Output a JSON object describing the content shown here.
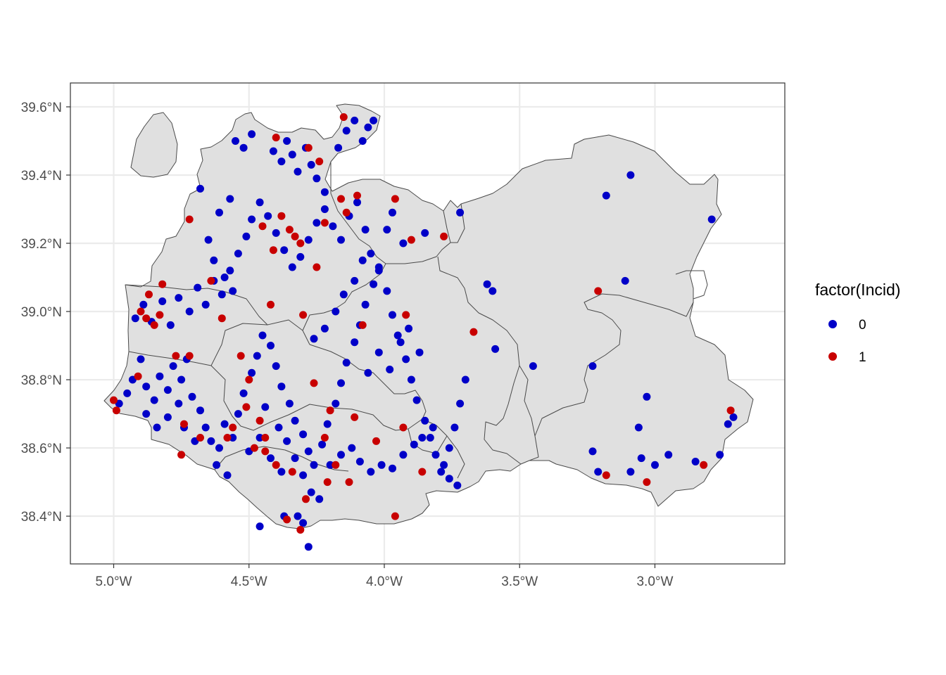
{
  "chart_data": {
    "type": "scatter",
    "subtype": "map",
    "x_ticks": [
      "5.0°W",
      "4.5°W",
      "4.0°W",
      "3.5°W",
      "3.0°W"
    ],
    "x_tick_values": [
      -5.0,
      -4.5,
      -4.0,
      -3.5,
      -3.0
    ],
    "y_ticks": [
      "38.4°N",
      "38.6°N",
      "38.8°N",
      "39.0°N",
      "39.2°N",
      "39.4°N",
      "39.6°N"
    ],
    "y_tick_values": [
      38.4,
      38.6,
      38.8,
      39.0,
      39.2,
      39.4,
      39.6
    ],
    "xlim": [
      -5.16,
      -2.52
    ],
    "ylim": [
      38.26,
      39.67
    ],
    "grid": true,
    "legend": {
      "title": "factor(Incid)",
      "position": "right",
      "entries": [
        {
          "label": "0",
          "color": "#0000c8"
        },
        {
          "label": "1",
          "color": "#c80000"
        }
      ]
    },
    "colors": {
      "0": "#0000c8",
      "1": "#c80000",
      "land": "#e0e0e0",
      "border": "#4a4a4a"
    },
    "series": [
      {
        "name": "0",
        "points": [
          [
            -4.98,
            38.73
          ],
          [
            -4.95,
            38.76
          ],
          [
            -4.93,
            38.8
          ],
          [
            -4.9,
            38.86
          ],
          [
            -4.88,
            38.78
          ],
          [
            -4.85,
            38.74
          ],
          [
            -4.83,
            38.81
          ],
          [
            -4.8,
            38.77
          ],
          [
            -4.78,
            38.84
          ],
          [
            -4.75,
            38.8
          ],
          [
            -4.73,
            38.86
          ],
          [
            -4.71,
            38.75
          ],
          [
            -4.68,
            38.71
          ],
          [
            -4.66,
            38.66
          ],
          [
            -4.64,
            38.62
          ],
          [
            -4.61,
            38.6
          ],
          [
            -4.59,
            38.67
          ],
          [
            -4.56,
            38.63
          ],
          [
            -4.54,
            38.7
          ],
          [
            -4.52,
            38.76
          ],
          [
            -4.49,
            38.82
          ],
          [
            -4.47,
            38.87
          ],
          [
            -4.45,
            38.93
          ],
          [
            -4.42,
            38.9
          ],
          [
            -4.4,
            38.84
          ],
          [
            -4.38,
            38.78
          ],
          [
            -4.35,
            38.73
          ],
          [
            -4.33,
            38.68
          ],
          [
            -4.3,
            38.64
          ],
          [
            -4.28,
            38.59
          ],
          [
            -4.26,
            38.55
          ],
          [
            -4.23,
            38.61
          ],
          [
            -4.21,
            38.67
          ],
          [
            -4.18,
            38.73
          ],
          [
            -4.16,
            38.79
          ],
          [
            -4.14,
            38.85
          ],
          [
            -4.11,
            38.91
          ],
          [
            -4.09,
            38.96
          ],
          [
            -4.07,
            39.02
          ],
          [
            -4.04,
            39.08
          ],
          [
            -4.02,
            39.13
          ],
          [
            -3.99,
            39.06
          ],
          [
            -3.97,
            38.99
          ],
          [
            -3.95,
            38.93
          ],
          [
            -3.92,
            38.86
          ],
          [
            -3.9,
            38.8
          ],
          [
            -3.88,
            38.74
          ],
          [
            -3.85,
            38.68
          ],
          [
            -3.83,
            38.63
          ],
          [
            -3.81,
            38.58
          ],
          [
            -3.78,
            38.55
          ],
          [
            -3.76,
            38.6
          ],
          [
            -3.74,
            38.66
          ],
          [
            -3.72,
            38.73
          ],
          [
            -3.7,
            38.8
          ],
          [
            -4.92,
            38.98
          ],
          [
            -4.89,
            39.02
          ],
          [
            -4.86,
            38.97
          ],
          [
            -4.82,
            39.03
          ],
          [
            -4.79,
            38.96
          ],
          [
            -4.76,
            39.04
          ],
          [
            -4.72,
            39.0
          ],
          [
            -4.69,
            39.07
          ],
          [
            -4.66,
            39.02
          ],
          [
            -4.63,
            39.09
          ],
          [
            -4.6,
            39.05
          ],
          [
            -4.57,
            39.12
          ],
          [
            -4.54,
            39.17
          ],
          [
            -4.51,
            39.22
          ],
          [
            -4.49,
            39.27
          ],
          [
            -4.46,
            39.32
          ],
          [
            -4.43,
            39.28
          ],
          [
            -4.4,
            39.23
          ],
          [
            -4.37,
            39.18
          ],
          [
            -4.34,
            39.13
          ],
          [
            -4.31,
            39.16
          ],
          [
            -4.28,
            39.21
          ],
          [
            -4.25,
            39.26
          ],
          [
            -4.22,
            39.3
          ],
          [
            -4.19,
            39.25
          ],
          [
            -4.16,
            39.21
          ],
          [
            -4.13,
            39.28
          ],
          [
            -4.1,
            39.32
          ],
          [
            -4.07,
            39.24
          ],
          [
            -4.05,
            39.17
          ],
          [
            -4.02,
            39.12
          ],
          [
            -4.55,
            39.5
          ],
          [
            -4.52,
            39.48
          ],
          [
            -4.49,
            39.52
          ],
          [
            -4.41,
            39.47
          ],
          [
            -4.38,
            39.44
          ],
          [
            -4.36,
            39.5
          ],
          [
            -4.34,
            39.46
          ],
          [
            -4.32,
            39.41
          ],
          [
            -4.29,
            39.48
          ],
          [
            -4.27,
            39.43
          ],
          [
            -4.25,
            39.39
          ],
          [
            -4.22,
            39.35
          ],
          [
            -4.14,
            39.53
          ],
          [
            -4.11,
            39.56
          ],
          [
            -4.08,
            39.5
          ],
          [
            -4.06,
            39.54
          ],
          [
            -4.04,
            39.56
          ],
          [
            -4.17,
            39.48
          ],
          [
            -4.68,
            39.36
          ],
          [
            -4.61,
            39.29
          ],
          [
            -4.57,
            39.33
          ],
          [
            -4.65,
            39.21
          ],
          [
            -4.63,
            39.15
          ],
          [
            -4.59,
            39.1
          ],
          [
            -4.56,
            39.06
          ],
          [
            -4.44,
            38.72
          ],
          [
            -4.39,
            38.66
          ],
          [
            -4.36,
            38.62
          ],
          [
            -4.33,
            38.57
          ],
          [
            -4.3,
            38.52
          ],
          [
            -4.27,
            38.47
          ],
          [
            -4.24,
            38.45
          ],
          [
            -4.37,
            38.4
          ],
          [
            -4.32,
            38.4
          ],
          [
            -4.3,
            38.38
          ],
          [
            -4.28,
            38.31
          ],
          [
            -4.46,
            38.37
          ],
          [
            -4.2,
            38.55
          ],
          [
            -4.16,
            38.58
          ],
          [
            -4.12,
            38.6
          ],
          [
            -4.09,
            38.56
          ],
          [
            -4.05,
            38.53
          ],
          [
            -4.01,
            38.55
          ],
          [
            -3.97,
            38.54
          ],
          [
            -3.93,
            38.58
          ],
          [
            -3.89,
            38.61
          ],
          [
            -3.86,
            38.63
          ],
          [
            -3.82,
            38.66
          ],
          [
            -3.79,
            38.53
          ],
          [
            -3.76,
            38.51
          ],
          [
            -3.73,
            38.49
          ],
          [
            -3.62,
            39.08
          ],
          [
            -3.6,
            39.06
          ],
          [
            -3.59,
            38.89
          ],
          [
            -3.45,
            38.84
          ],
          [
            -3.23,
            38.84
          ],
          [
            -3.23,
            38.59
          ],
          [
            -3.21,
            38.53
          ],
          [
            -3.09,
            38.53
          ],
          [
            -3.03,
            38.75
          ],
          [
            -3.06,
            38.66
          ],
          [
            -3.05,
            38.57
          ],
          [
            -3.0,
            38.55
          ],
          [
            -2.95,
            38.58
          ],
          [
            -2.85,
            38.56
          ],
          [
            -2.76,
            38.58
          ],
          [
            -2.73,
            38.67
          ],
          [
            -2.71,
            38.69
          ],
          [
            -3.11,
            39.09
          ],
          [
            -3.18,
            39.34
          ],
          [
            -3.09,
            39.4
          ],
          [
            -2.79,
            39.27
          ],
          [
            -3.72,
            39.29
          ],
          [
            -3.85,
            39.23
          ],
          [
            -3.93,
            39.2
          ],
          [
            -3.97,
            39.29
          ],
          [
            -3.99,
            39.24
          ],
          [
            -4.88,
            38.7
          ],
          [
            -4.84,
            38.66
          ],
          [
            -4.8,
            38.69
          ],
          [
            -4.76,
            38.73
          ],
          [
            -4.74,
            38.66
          ],
          [
            -4.7,
            38.62
          ],
          [
            -4.62,
            38.55
          ],
          [
            -4.58,
            38.52
          ],
          [
            -4.5,
            38.59
          ],
          [
            -4.46,
            38.63
          ],
          [
            -4.42,
            38.57
          ],
          [
            -4.38,
            38.53
          ],
          [
            -4.06,
            38.82
          ],
          [
            -4.02,
            38.88
          ],
          [
            -3.98,
            38.83
          ],
          [
            -3.94,
            38.91
          ],
          [
            -3.91,
            38.95
          ],
          [
            -3.87,
            38.88
          ],
          [
            -4.15,
            39.05
          ],
          [
            -4.11,
            39.09
          ],
          [
            -4.08,
            39.15
          ],
          [
            -4.18,
            39.0
          ],
          [
            -4.22,
            38.95
          ],
          [
            -4.26,
            38.92
          ]
        ]
      },
      {
        "name": "1",
        "points": [
          [
            -5.0,
            38.74
          ],
          [
            -4.99,
            38.71
          ],
          [
            -4.91,
            38.81
          ],
          [
            -4.9,
            39.0
          ],
          [
            -4.88,
            38.98
          ],
          [
            -4.87,
            39.05
          ],
          [
            -4.85,
            38.96
          ],
          [
            -4.83,
            38.99
          ],
          [
            -4.82,
            39.08
          ],
          [
            -4.77,
            38.87
          ],
          [
            -4.75,
            38.58
          ],
          [
            -4.74,
            38.67
          ],
          [
            -4.72,
            38.87
          ],
          [
            -4.72,
            39.27
          ],
          [
            -4.68,
            38.63
          ],
          [
            -4.64,
            39.09
          ],
          [
            -4.6,
            38.98
          ],
          [
            -4.58,
            38.63
          ],
          [
            -4.56,
            38.66
          ],
          [
            -4.53,
            38.87
          ],
          [
            -4.51,
            38.72
          ],
          [
            -4.5,
            38.8
          ],
          [
            -4.48,
            38.6
          ],
          [
            -4.46,
            38.68
          ],
          [
            -4.44,
            38.63
          ],
          [
            -4.42,
            39.02
          ],
          [
            -4.4,
            39.51
          ],
          [
            -4.38,
            39.28
          ],
          [
            -4.35,
            39.24
          ],
          [
            -4.33,
            39.22
          ],
          [
            -4.31,
            39.2
          ],
          [
            -4.3,
            38.99
          ],
          [
            -4.28,
            39.48
          ],
          [
            -4.26,
            38.79
          ],
          [
            -4.24,
            39.44
          ],
          [
            -4.22,
            38.63
          ],
          [
            -4.2,
            38.71
          ],
          [
            -4.18,
            38.55
          ],
          [
            -4.16,
            39.33
          ],
          [
            -4.15,
            39.57
          ],
          [
            -4.14,
            39.29
          ],
          [
            -4.11,
            38.69
          ],
          [
            -4.1,
            39.34
          ],
          [
            -4.08,
            38.96
          ],
          [
            -4.03,
            38.62
          ],
          [
            -3.96,
            39.33
          ],
          [
            -3.96,
            38.4
          ],
          [
            -3.93,
            38.66
          ],
          [
            -3.92,
            38.99
          ],
          [
            -3.9,
            39.21
          ],
          [
            -3.86,
            38.53
          ],
          [
            -3.78,
            39.22
          ],
          [
            -3.67,
            38.94
          ],
          [
            -3.21,
            39.06
          ],
          [
            -3.18,
            38.52
          ],
          [
            -3.03,
            38.5
          ],
          [
            -2.82,
            38.55
          ],
          [
            -2.72,
            38.71
          ],
          [
            -4.36,
            38.39
          ],
          [
            -4.31,
            38.36
          ],
          [
            -4.44,
            38.59
          ],
          [
            -4.4,
            38.55
          ],
          [
            -4.34,
            38.53
          ],
          [
            -4.29,
            38.45
          ],
          [
            -4.21,
            38.5
          ],
          [
            -4.13,
            38.5
          ],
          [
            -4.25,
            39.13
          ],
          [
            -4.22,
            39.26
          ],
          [
            -4.45,
            39.25
          ],
          [
            -4.41,
            39.18
          ]
        ]
      }
    ]
  }
}
